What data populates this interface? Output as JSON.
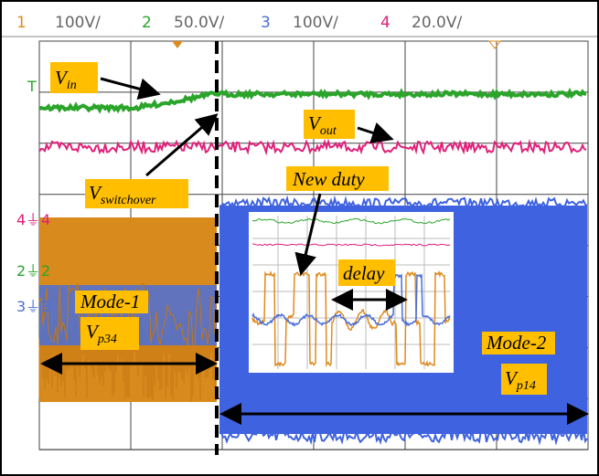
{
  "header": {
    "channels": [
      {
        "number": "1",
        "scale": "100V/"
      },
      {
        "number": "2",
        "scale": "50.0V/"
      },
      {
        "number": "3",
        "scale": "100V/"
      },
      {
        "number": "4",
        "scale": "20.0V/"
      }
    ]
  },
  "markers": {
    "trigger": "T",
    "ch4": "4",
    "ch2": "2",
    "ch3": "3"
  },
  "annotations": {
    "v_in": {
      "main": "V",
      "sub": "in"
    },
    "v_out": {
      "main": "V",
      "sub": "out"
    },
    "v_switchover": {
      "main": "V",
      "sub": "switchover"
    },
    "new_duty": "New duty",
    "delay": "delay",
    "mode_1": "Mode-1",
    "v_p34": {
      "main": "V",
      "sub": "p34"
    },
    "mode_2": "Mode-2",
    "v_p14": {
      "main": "V",
      "sub": "p14"
    }
  }
}
